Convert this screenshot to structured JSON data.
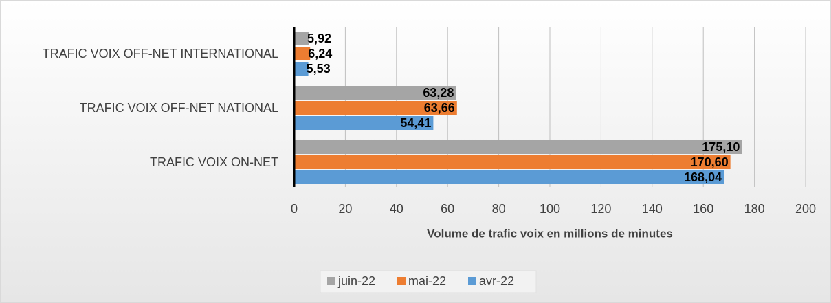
{
  "chart_data": {
    "type": "bar",
    "orientation": "horizontal",
    "categories": [
      "TRAFIC VOIX OFF-NET INTERNATIONAL",
      "TRAFIC VOIX OFF-NET NATIONAL",
      "TRAFIC VOIX ON-NET"
    ],
    "series": [
      {
        "name": "juin-22",
        "color": "#a5a5a5",
        "values": [
          5.92,
          63.28,
          175.1
        ],
        "value_labels": [
          "5,92",
          "63,28",
          "175,10"
        ]
      },
      {
        "name": "mai-22",
        "color": "#ed7d31",
        "values": [
          6.24,
          63.66,
          170.6
        ],
        "value_labels": [
          "6,24",
          "63,66",
          "170,60"
        ]
      },
      {
        "name": "avr-22",
        "color": "#5b9bd5",
        "values": [
          5.53,
          54.41,
          168.04
        ],
        "value_labels": [
          "5,53",
          "54,41",
          "168,04"
        ]
      }
    ],
    "x_label": "Volume de trafic voix en millions de minutes",
    "xlim": [
      0,
      200
    ],
    "xticks": [
      0,
      20,
      40,
      60,
      80,
      100,
      120,
      140,
      160,
      180,
      200
    ],
    "grid": true,
    "legend": "bottom"
  }
}
